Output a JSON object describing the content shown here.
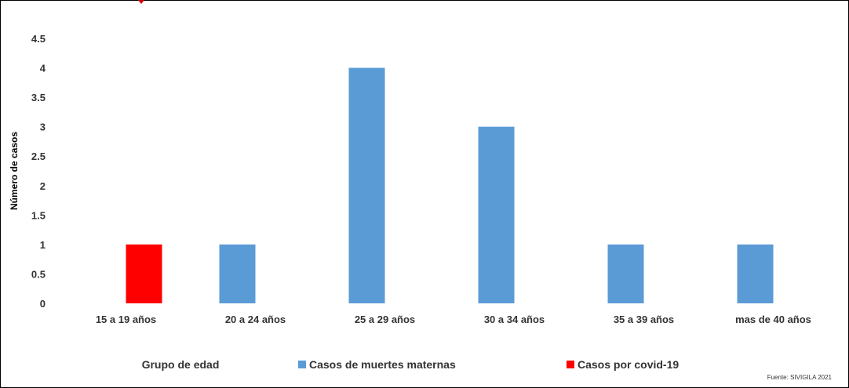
{
  "chart_data": {
    "type": "bar",
    "categories": [
      "15 a 19 años",
      "20 a 24 años",
      "25 a 29 años",
      "30 a 34 años",
      "35 a 39 años",
      "mas de 40 años"
    ],
    "series": [
      {
        "name": "Casos de muertes maternas",
        "color": "#5b9bd5",
        "values": [
          0,
          1,
          4,
          3,
          1,
          1
        ]
      },
      {
        "name": "Casos por covid-19",
        "color": "#ff0000",
        "values": [
          1,
          0,
          0,
          0,
          0,
          0
        ]
      }
    ],
    "ylabel": "Número de casos",
    "xlabel": "",
    "ylim": [
      0,
      4.5
    ],
    "yticks": [
      "0",
      "0.5",
      "1",
      "1.5",
      "2",
      "2.5",
      "3",
      "3.5",
      "4",
      "4.5"
    ],
    "grid": false,
    "legend_title": "Grupo de edad",
    "legend_position": "bottom",
    "source": "Fuente: SIVIGILA 2021"
  }
}
